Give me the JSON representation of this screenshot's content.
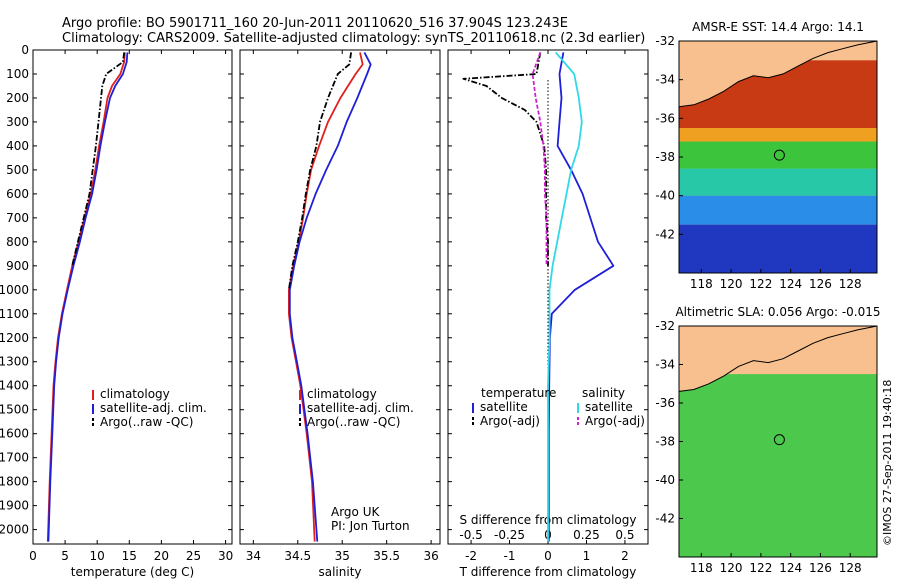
{
  "header": {
    "line1": "Argo profile: BO 5901711_160 20-Jun-2011 20110620_516 37.904S 123.243E",
    "line2": "Climatology: CARS2009. Satellite-adjusted climatology: synTS_20110618.nc (2.3d earlier)"
  },
  "colors": {
    "climatology": "#e0201c",
    "satellite": "#1f1fd8",
    "argo": "#000000",
    "sat_s": "#32d8e8",
    "argo_s": "#d020d0",
    "land": "#f7c08e"
  },
  "credits": {
    "org": "Argo UK",
    "pi": "PI: Jon Turton"
  },
  "watermark": "©IMOS 27-Sep-2011 19:40:18",
  "chart_data": [
    {
      "id": "temperature",
      "type": "line",
      "xlabel": "temperature (deg C)",
      "xlim": [
        0,
        31
      ],
      "xticks": [
        0,
        5,
        10,
        15,
        20,
        25,
        30
      ],
      "ylim": [
        0,
        2060
      ],
      "yticks": [
        0,
        100,
        200,
        300,
        400,
        500,
        600,
        700,
        800,
        900,
        1000,
        1100,
        1200,
        1300,
        1400,
        1500,
        1600,
        1700,
        1800,
        1900,
        2000
      ],
      "legend": [
        "climatology",
        "satellite-adj. clim.",
        "Argo(..raw -QC)"
      ],
      "series": [
        {
          "name": "climatology",
          "style": "solid",
          "color_key": "climatology",
          "depth": [
            10,
            50,
            100,
            150,
            200,
            300,
            400,
            500,
            600,
            700,
            800,
            900,
            1000,
            1100,
            1200,
            1300,
            1400,
            1600,
            1800,
            2050
          ],
          "values": [
            14.3,
            14.2,
            13.6,
            12.3,
            11.6,
            11.0,
            10.3,
            9.7,
            9.0,
            8.0,
            7.1,
            6.1,
            5.3,
            4.5,
            3.9,
            3.5,
            3.2,
            2.9,
            2.6,
            2.3
          ]
        },
        {
          "name": "satellite",
          "style": "solid",
          "color_key": "satellite",
          "depth": [
            10,
            50,
            100,
            150,
            200,
            300,
            400,
            500,
            600,
            700,
            800,
            900,
            1000,
            1100,
            1200,
            1300,
            1400,
            1600,
            1800,
            2050
          ],
          "values": [
            14.7,
            14.6,
            14.0,
            12.8,
            12.0,
            11.2,
            10.5,
            9.9,
            9.2,
            8.2,
            7.3,
            6.3,
            5.4,
            4.6,
            4.0,
            3.6,
            3.3,
            3.0,
            2.7,
            2.4
          ]
        },
        {
          "name": "argo",
          "style": "dashdot",
          "color_key": "argo",
          "depth": [
            10,
            50,
            100,
            150,
            200,
            300,
            400,
            500,
            600,
            700,
            800,
            900
          ],
          "values": [
            14.2,
            14.0,
            11.4,
            10.8,
            10.6,
            10.2,
            9.8,
            9.3,
            8.8,
            7.9,
            7.0,
            6.1
          ]
        }
      ]
    },
    {
      "id": "salinity",
      "type": "line",
      "xlabel": "salinity",
      "xlim": [
        33.85,
        36.1
      ],
      "xticks": [
        34,
        34.5,
        35,
        35.5,
        36
      ],
      "ylim": [
        0,
        2060
      ],
      "legend": [
        "climatology",
        "satellite-adj. clim.",
        "Argo(..raw -QC)"
      ],
      "series": [
        {
          "name": "climatology",
          "style": "solid",
          "color_key": "climatology",
          "depth": [
            10,
            60,
            100,
            200,
            300,
            400,
            500,
            600,
            700,
            800,
            900,
            1000,
            1100,
            1200,
            1300,
            1400,
            1600,
            1800,
            2050
          ],
          "values": [
            35.2,
            35.23,
            35.15,
            34.98,
            34.84,
            34.74,
            34.65,
            34.6,
            34.56,
            34.51,
            34.45,
            34.4,
            34.4,
            34.43,
            34.48,
            34.53,
            34.6,
            34.66,
            34.69
          ]
        },
        {
          "name": "satellite",
          "style": "solid",
          "color_key": "satellite",
          "depth": [
            10,
            60,
            100,
            200,
            300,
            400,
            500,
            600,
            700,
            800,
            900,
            1000,
            1100,
            1200,
            1300,
            1400,
            1600,
            1800,
            2050
          ],
          "values": [
            35.25,
            35.32,
            35.28,
            35.17,
            35.05,
            34.95,
            34.82,
            34.7,
            34.6,
            34.52,
            34.46,
            34.41,
            34.41,
            34.44,
            34.49,
            34.54,
            34.61,
            34.67,
            34.72
          ]
        },
        {
          "name": "argo",
          "style": "dashdot",
          "color_key": "argo",
          "depth": [
            10,
            60,
            100,
            200,
            300,
            400,
            500,
            600,
            700,
            800,
            900,
            1000
          ],
          "values": [
            35.1,
            35.08,
            34.95,
            34.84,
            34.75,
            34.71,
            34.64,
            34.59,
            34.55,
            34.5,
            34.44,
            34.4
          ]
        }
      ]
    },
    {
      "id": "difference",
      "type": "line",
      "xlabel": "T difference from climatology",
      "xlabel_top": "S difference from climatology",
      "xlim": [
        -2.6,
        2.6
      ],
      "xticks": [
        -2,
        -1,
        0,
        1,
        2
      ],
      "xticks_s": [
        -0.5,
        -0.25,
        0,
        0.25,
        0.5
      ],
      "ylim": [
        0,
        2060
      ],
      "legend_headers": [
        "temperature",
        "salinity"
      ],
      "legend": [
        "satellite",
        "Argo(-adj)",
        "satellite",
        "Argo(-adj)"
      ],
      "series": [
        {
          "name": "T satellite",
          "style": "solid",
          "color_key": "satellite",
          "depth": [
            10,
            100,
            200,
            300,
            400,
            500,
            600,
            700,
            800,
            900,
            1000,
            1100,
            1200,
            1400,
            1600,
            1800,
            2050
          ],
          "values": [
            0.4,
            0.3,
            0.35,
            0.3,
            0.25,
            0.6,
            0.9,
            1.1,
            1.3,
            1.7,
            0.7,
            0.1,
            0.05,
            0.03,
            0.02,
            0.02,
            0.02
          ]
        },
        {
          "name": "T argo",
          "style": "dashdot",
          "color_key": "argo",
          "depth": [
            10,
            100,
            120,
            150,
            200,
            250,
            300,
            400,
            500,
            600,
            700,
            800,
            900
          ],
          "values": [
            -0.2,
            -0.3,
            -2.2,
            -1.6,
            -1.2,
            -0.6,
            -0.3,
            -0.1,
            -0.05,
            -0.05,
            -0.05,
            0.0,
            0.0
          ]
        },
        {
          "name": "S satellite",
          "style": "solid",
          "color_key": "sat_s",
          "depth": [
            10,
            100,
            200,
            300,
            400,
            500,
            600,
            700,
            800,
            900,
            1000,
            1100,
            1200,
            1400,
            1600,
            1800,
            2050
          ],
          "values": [
            0.05,
            0.17,
            0.2,
            0.22,
            0.2,
            0.15,
            0.12,
            0.09,
            0.06,
            0.03,
            0.01,
            0.01,
            0.01,
            0.0,
            0.0,
            0.0,
            0.0
          ]
        },
        {
          "name": "S argo",
          "style": "dashed",
          "color_key": "argo_s",
          "depth": [
            10,
            100,
            200,
            300,
            400,
            500,
            600,
            700,
            800,
            900
          ],
          "values": [
            -0.05,
            -0.1,
            -0.08,
            -0.05,
            -0.03,
            -0.02,
            -0.02,
            -0.01,
            -0.01,
            -0.01
          ]
        }
      ]
    },
    {
      "id": "sst_map",
      "type": "heatmap",
      "title": "AMSR-E SST: 14.4 Argo: 14.1",
      "xlim": [
        116.5,
        129.8
      ],
      "ylim": [
        -44,
        -32
      ],
      "xticks": [
        118,
        120,
        122,
        124,
        126,
        128
      ],
      "yticks": [
        -32,
        -34,
        -36,
        -38,
        -40,
        -42
      ],
      "argo_position": [
        123.243,
        -37.904
      ],
      "bands": [
        {
          "lat": [
            -36.5,
            -33
          ],
          "color": "#c83a14"
        },
        {
          "lat": [
            -37.2,
            -36.5
          ],
          "color": "#f0a020"
        },
        {
          "lat": [
            -38.6,
            -37.2
          ],
          "color": "#3cc53c"
        },
        {
          "lat": [
            -40.0,
            -38.6
          ],
          "color": "#26c8a8"
        },
        {
          "lat": [
            -41.5,
            -40.0
          ],
          "color": "#2a8ee8"
        },
        {
          "lat": [
            -44,
            -41.5
          ],
          "color": "#2038c0"
        }
      ]
    },
    {
      "id": "sla_map",
      "type": "heatmap",
      "title": "Altimetric SLA: 0.056 Argo: -0.015",
      "xlim": [
        116.5,
        129.8
      ],
      "ylim": [
        -44,
        -32
      ],
      "xticks": [
        118,
        120,
        122,
        124,
        126,
        128
      ],
      "yticks": [
        -32,
        -34,
        -36,
        -38,
        -40,
        -42
      ],
      "argo_position": [
        123.243,
        -37.904
      ],
      "bands": [
        {
          "lat": [
            -44,
            -34.5
          ],
          "color": "#4cc84c"
        }
      ]
    }
  ]
}
